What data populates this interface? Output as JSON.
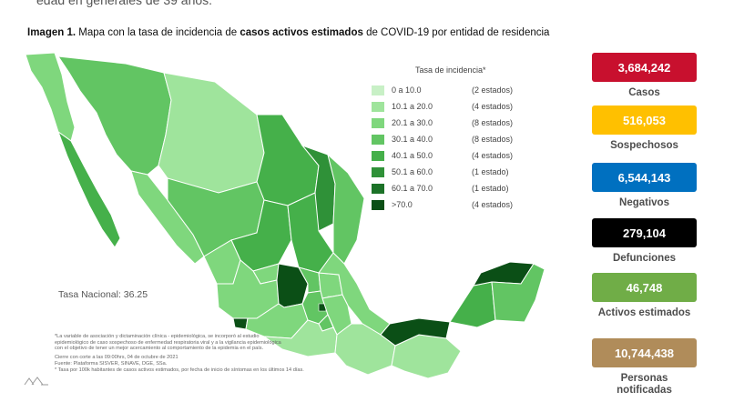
{
  "header_cut_text": "edad en generales de 39 años.",
  "caption": {
    "prefix": "Imagen 1.",
    "part1": " Mapa con la tasa de incidencia de ",
    "bold": "casos activos estimados",
    "part2": " de COVID-19 por entidad de residencia"
  },
  "legend": {
    "title": "Tasa de incidencia*",
    "items": [
      {
        "range": "0   a  10.0",
        "count": "(2 estados)",
        "color": "#c8f0c6"
      },
      {
        "range": "10.1  a  20.0",
        "count": "(4 estados)",
        "color": "#9fe49c"
      },
      {
        "range": "20.1  a  30.0",
        "count": "(8 estados)",
        "color": "#7fd77d"
      },
      {
        "range": "30.1  a  40.0",
        "count": "(8 estados)",
        "color": "#62c563"
      },
      {
        "range": "40.1  a  50.0",
        "count": "(4 estados)",
        "color": "#45b04a"
      },
      {
        "range": "50.1  a  60.0",
        "count": "(1 estado)",
        "color": "#2f9138"
      },
      {
        "range": "60.1  a  70.0",
        "count": "(1 estado)",
        "color": "#1c7228"
      },
      {
        "range": ">70.0",
        "count": "(4 estados)",
        "color": "#0b4f16"
      }
    ]
  },
  "national_rate": "Tasa Nacional: 36.25",
  "footnotes": [
    "*La variable de asociación y dictaminación clínica - epidemiológica, se incorporó al estudio",
    "epidemiológico de caso sospechoso de enfermedad respiratoria viral y a la vigilancia epidemiológica",
    "con el objetivo de tener un mejor acercamiento al comportamiento de la epidemia en el país.",
    "Cierre con corte a las 09:00hrs, 04 de octubre de 2021",
    "Fuente: Plataforma SISVER, SINAVE, DGE, SSa.",
    "* Tasa por 100k habitantes de casos activos estimados, por fecha de inicio de síntomas en los últimos 14 días."
  ],
  "stats": [
    {
      "value": "3,684,242",
      "label": "Casos",
      "color": "#c8102e",
      "text_color": "#ffffff"
    },
    {
      "value": "516,053",
      "label": "Sospechosos",
      "color": "#ffc000",
      "text_color": "#ffffff"
    },
    {
      "value": "6,544,143",
      "label": "Negativos",
      "color": "#0070c0",
      "text_color": "#ffffff"
    },
    {
      "value": "279,104",
      "label": "Defunciones",
      "color": "#000000",
      "text_color": "#ffffff"
    },
    {
      "value": "46,748",
      "label": "Activos estimados",
      "color": "#70ad47",
      "text_color": "#ffffff"
    },
    {
      "value": "10,744,438",
      "label": "Personas notificadas",
      "color": "#b08c5a",
      "text_color": "#ffffff"
    }
  ]
}
